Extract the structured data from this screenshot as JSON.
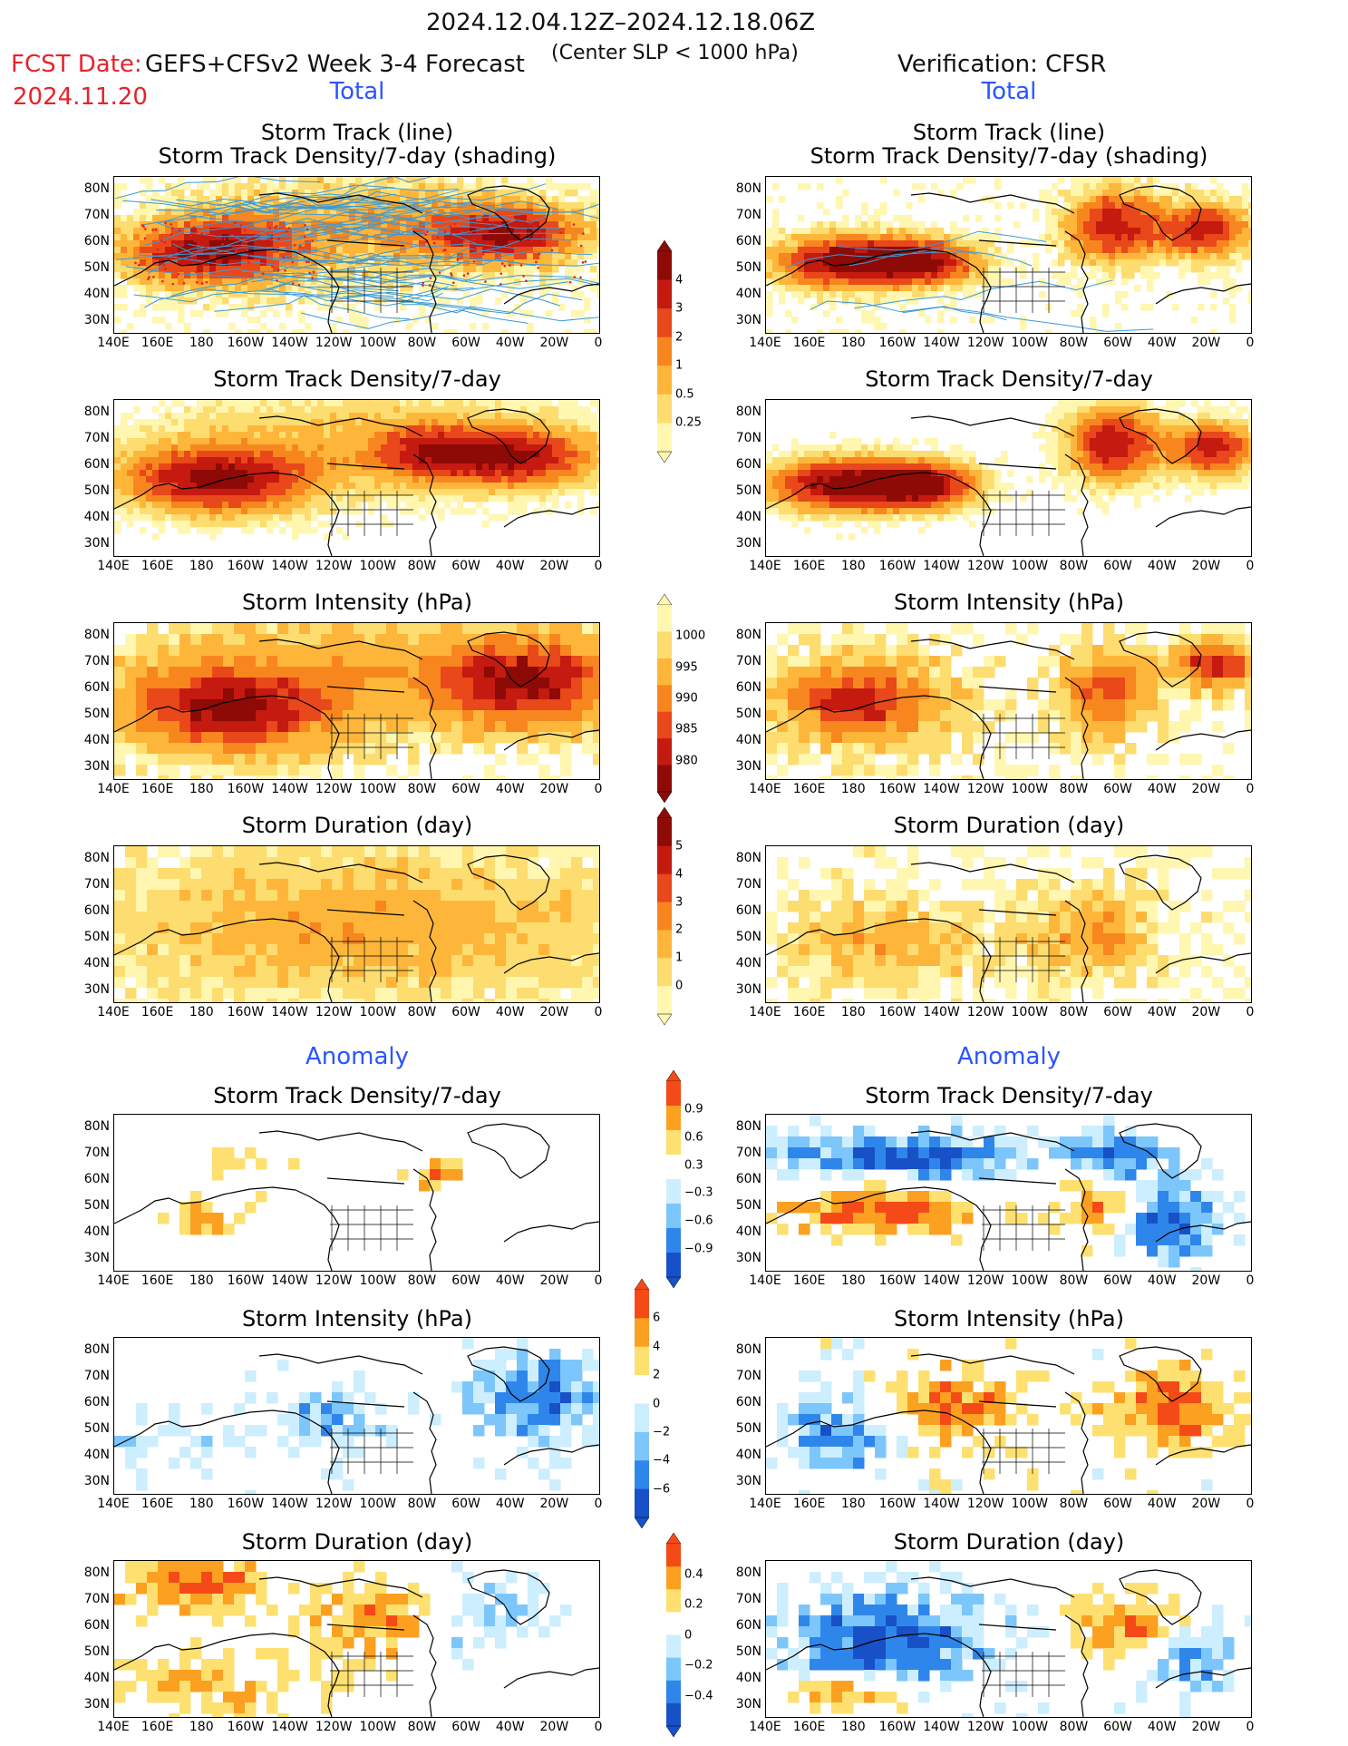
{
  "header": {
    "date_range": "2024.12.04.12Z–2024.12.18.06Z",
    "fcst_label": "FCST Date:",
    "fcst_date": "2024.11.20",
    "forecast_title": "GEFS+CFSv2 Week 3-4 Forecast",
    "center_slp": "(Center SLP < 1000 hPa)",
    "verification": "Verification: CFSR"
  },
  "sections": {
    "total": "Total",
    "anomaly": "Anomaly"
  },
  "panel_titles": {
    "track_line": "Storm Track (line)",
    "track_shading": "Storm Track Density/7-day (shading)",
    "density": "Storm Track Density/7-day",
    "intensity": "Storm Intensity (hPa)",
    "duration": "Storm Duration (day)"
  },
  "axes": {
    "lat_labels": [
      "80N",
      "70N",
      "60N",
      "50N",
      "40N",
      "30N"
    ],
    "lon_labels": [
      "140E",
      "160E",
      "180",
      "160W",
      "140W",
      "120W",
      "100W",
      "80W",
      "60W",
      "40W",
      "20W",
      "0"
    ]
  },
  "colorbars": {
    "density_total": [
      "4",
      "3",
      "2",
      "1",
      "0.5",
      "0.25"
    ],
    "intensity_total": [
      "1000",
      "995",
      "990",
      "985",
      "980"
    ],
    "duration_total": [
      "5",
      "4",
      "3",
      "2",
      "1",
      "0"
    ],
    "density_anom": [
      "0.9",
      "0.6",
      "0.3",
      "−0.3",
      "−0.6",
      "−0.9"
    ],
    "intensity_anom": [
      "6",
      "4",
      "2",
      "0",
      "−2",
      "−4",
      "−6"
    ],
    "duration_anom": [
      "0.4",
      "0.2",
      "0",
      "−0.2",
      "−0.4"
    ]
  },
  "colors": {
    "warm": [
      "#fff6b0",
      "#fddc70",
      "#fdb63a",
      "#f8861e",
      "#e8481a",
      "#c41a10",
      "#8e0a06"
    ],
    "anom_pos": [
      "#fde070",
      "#fba020",
      "#f44a18"
    ],
    "anom_neg": [
      "#cceefe",
      "#7cc6fb",
      "#2f86ea",
      "#1850c8"
    ],
    "track_line": "#3a9ad9",
    "track_point": "#e0202a"
  }
}
